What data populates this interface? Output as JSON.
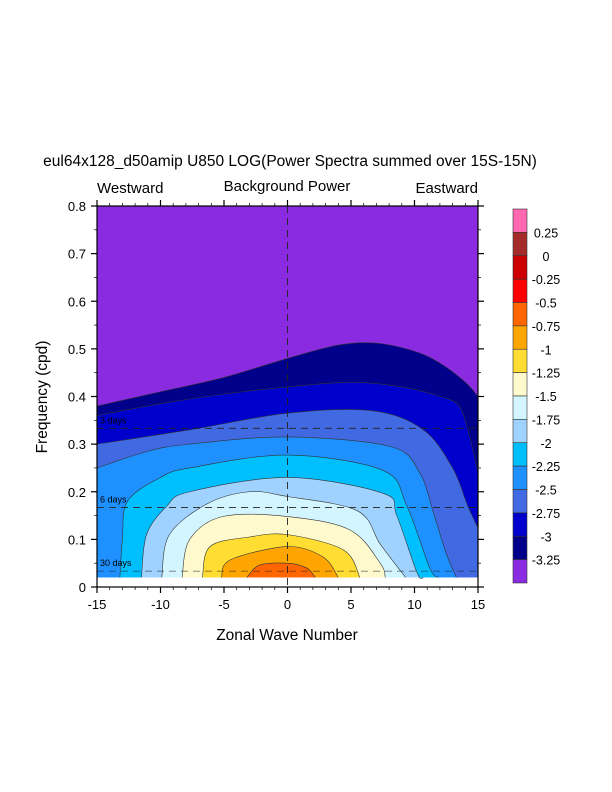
{
  "chart_data": {
    "type": "contour",
    "title": "eul64x128_d50amip U850 LOG(Power Spectra summed over 15S-15N)",
    "subtitle_left": "Westward",
    "subtitle_center": "Background Power",
    "subtitle_right": "Eastward",
    "xlabel": "Zonal Wave Number",
    "ylabel": "Frequency (cpd)",
    "xlim": [
      -15,
      15
    ],
    "ylim": [
      0,
      0.8
    ],
    "data_floor": 0.02,
    "xticks": [
      -15,
      -10,
      -5,
      0,
      5,
      10,
      15
    ],
    "xtick_labels": [
      "-15",
      "-10",
      "-5",
      "0",
      "5",
      "10",
      "15"
    ],
    "yticks": [
      0,
      0.1,
      0.2,
      0.3,
      0.4,
      0.5,
      0.6,
      0.7,
      0.8
    ],
    "ytick_labels": [
      "0",
      "0.1",
      "0.2",
      "0.3",
      "0.4",
      "0.5",
      "0.6",
      "0.7",
      "0.8"
    ],
    "reference_lines": [
      {
        "label": "3 days",
        "freq": 0.3333
      },
      {
        "label": "6 days",
        "freq": 0.1667
      },
      {
        "label": "30 days",
        "freq": 0.0333
      }
    ],
    "background_color": "#8a2be2",
    "contours": [
      {
        "level": -3.25,
        "color": "#00008b",
        "points": [
          [
            -15,
            0.38
          ],
          [
            -10,
            0.41
          ],
          [
            -5,
            0.44
          ],
          [
            0,
            0.48
          ],
          [
            4,
            0.508
          ],
          [
            7,
            0.512
          ],
          [
            10,
            0.495
          ],
          [
            12,
            0.47
          ],
          [
            14,
            0.43
          ],
          [
            15,
            0.4
          ]
        ]
      },
      {
        "level": -3.0,
        "color": "#0000cd",
        "points": [
          [
            -15,
            0.36
          ],
          [
            -10,
            0.385
          ],
          [
            -5,
            0.405
          ],
          [
            0,
            0.42
          ],
          [
            5,
            0.43
          ],
          [
            9,
            0.42
          ],
          [
            12,
            0.4
          ],
          [
            13.5,
            0.38
          ],
          [
            14.3,
            0.32
          ],
          [
            15,
            0.24
          ]
        ]
      },
      {
        "level": -2.75,
        "color": "#4169e1",
        "points": [
          [
            -15,
            0.3
          ],
          [
            -7.7,
            0.33
          ],
          [
            0,
            0.365
          ],
          [
            6.7,
            0.37
          ],
          [
            10.7,
            0.33
          ],
          [
            13,
            0.25
          ],
          [
            14.2,
            0.17
          ],
          [
            15,
            0.124
          ]
        ]
      },
      {
        "level": -2.5,
        "color": "#1e90ff",
        "points": [
          [
            -15,
            0.25
          ],
          [
            -11,
            0.285
          ],
          [
            -7.7,
            0.3
          ],
          [
            0,
            0.315
          ],
          [
            8.1,
            0.295
          ],
          [
            10.4,
            0.24
          ],
          [
            11.5,
            0.155
          ],
          [
            12.5,
            0.07
          ],
          [
            13.3,
            0.02
          ]
        ]
      },
      {
        "level": -2.25,
        "color": "#00bfff",
        "points": [
          [
            -13.2,
            0.02
          ],
          [
            -13,
            0.1
          ],
          [
            -12.6,
            0.18
          ],
          [
            -10,
            0.23
          ],
          [
            -7.7,
            0.25
          ],
          [
            0,
            0.277
          ],
          [
            7.5,
            0.245
          ],
          [
            9.4,
            0.17
          ],
          [
            11.2,
            0.04
          ],
          [
            11.9,
            0.02
          ]
        ]
      },
      {
        "level": -2.0,
        "color": "#a0d2ff",
        "points": [
          [
            -11.5,
            0.02
          ],
          [
            -11.1,
            0.11
          ],
          [
            -9.5,
            0.17
          ],
          [
            -7.7,
            0.2
          ],
          [
            0,
            0.23
          ],
          [
            7.5,
            0.197
          ],
          [
            8.6,
            0.15
          ],
          [
            10.2,
            0.03
          ],
          [
            10.7,
            0.02
          ]
        ]
      },
      {
        "level": -1.75,
        "color": "#d2f5ff",
        "points": [
          [
            -9.9,
            0.02
          ],
          [
            -9.3,
            0.11
          ],
          [
            -6.3,
            0.175
          ],
          [
            -3,
            0.2
          ],
          [
            0,
            0.19
          ],
          [
            5.5,
            0.16
          ],
          [
            7.3,
            0.09
          ],
          [
            9.3,
            0.02
          ]
        ]
      },
      {
        "level": -1.5,
        "color": "#fffacd",
        "points": [
          [
            -8.3,
            0.02
          ],
          [
            -7.7,
            0.1
          ],
          [
            -5.1,
            0.148
          ],
          [
            0,
            0.148
          ],
          [
            4.9,
            0.12
          ],
          [
            7.3,
            0.05
          ],
          [
            7.7,
            0.02
          ]
        ]
      },
      {
        "level": -1.25,
        "color": "#ffdd33",
        "points": [
          [
            -6.7,
            0.02
          ],
          [
            -6.1,
            0.085
          ],
          [
            -3,
            0.105
          ],
          [
            0,
            0.11
          ],
          [
            4.4,
            0.078
          ],
          [
            5.7,
            0.02
          ]
        ]
      },
      {
        "level": -1.0,
        "color": "#ffa500",
        "points": [
          [
            -5.2,
            0.02
          ],
          [
            -4.5,
            0.057
          ],
          [
            0,
            0.085
          ],
          [
            2.8,
            0.063
          ],
          [
            4,
            0.02
          ]
        ]
      },
      {
        "level": -0.75,
        "color": "#ff6600",
        "points": [
          [
            -3.2,
            0.02
          ],
          [
            -2.2,
            0.046
          ],
          [
            0,
            0.05
          ],
          [
            1.5,
            0.04
          ],
          [
            2.2,
            0.02
          ]
        ]
      }
    ],
    "colorbar": {
      "labels": [
        "0.25",
        "0",
        "-0.25",
        "-0.5",
        "-0.75",
        "-1",
        "-1.25",
        "-1.5",
        "-1.75",
        "-2",
        "-2.25",
        "-2.5",
        "-2.75",
        "-3",
        "-3.25"
      ],
      "colors": [
        "#ff69b4",
        "#a52a2a",
        "#cc0000",
        "#ff0000",
        "#ff6600",
        "#ffa500",
        "#ffdd33",
        "#fffacd",
        "#d2f5ff",
        "#a0d2ff",
        "#00bfff",
        "#1e90ff",
        "#4169e1",
        "#0000cd",
        "#00008b",
        "#8a2be2"
      ]
    }
  }
}
